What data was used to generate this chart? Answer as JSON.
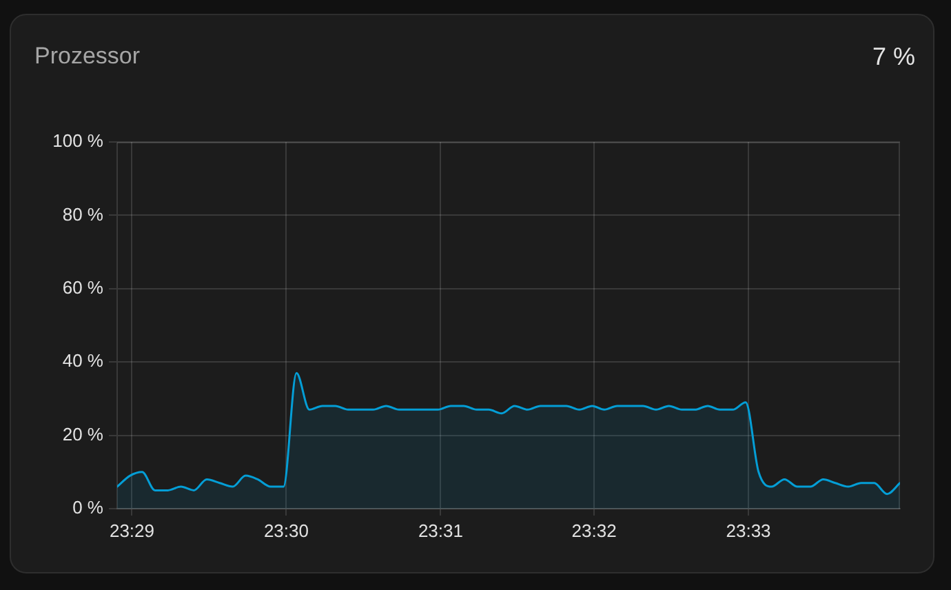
{
  "chart_data": {
    "type": "area",
    "title": "Prozessor",
    "annotations": [
      "7 %"
    ],
    "x": [
      23.4817,
      23.4831,
      23.4844,
      23.4858,
      23.4872,
      23.4886,
      23.49,
      23.4914,
      23.4928,
      23.4942,
      23.4956,
      23.4969,
      23.4983,
      23.4997,
      23.5011,
      23.5025,
      23.5039,
      23.5053,
      23.5067,
      23.5081,
      23.5094,
      23.5108,
      23.5122,
      23.5136,
      23.515,
      23.5164,
      23.5178,
      23.5192,
      23.5206,
      23.5219,
      23.5233,
      23.5247,
      23.5261,
      23.5275,
      23.5289,
      23.5303,
      23.5317,
      23.5331,
      23.5344,
      23.5358,
      23.5372,
      23.5386,
      23.54,
      23.5414,
      23.5428,
      23.5442,
      23.5456,
      23.5469,
      23.5483,
      23.5497,
      23.5511,
      23.5525,
      23.5539,
      23.5553,
      23.5567,
      23.5581,
      23.5594,
      23.5608,
      23.5622,
      23.5636,
      23.565,
      23.5664
    ],
    "series": [
      {
        "color": "#049ed6",
        "values": [
          6,
          9,
          10,
          5,
          5,
          6,
          5,
          8,
          7,
          6,
          9,
          8,
          6,
          6,
          37,
          27,
          28,
          28,
          27,
          27,
          27,
          28,
          27,
          27,
          27,
          27,
          28,
          28,
          27,
          27,
          26,
          28,
          27,
          28,
          28,
          28,
          27,
          28,
          27,
          28,
          28,
          28,
          27,
          28,
          27,
          27,
          28,
          27,
          27,
          29,
          10,
          6,
          8,
          6,
          6,
          8,
          7,
          6,
          7,
          7,
          4,
          7
        ]
      }
    ],
    "xlim": [
      23.4817,
      23.5664
    ],
    "xticks": [
      {
        "value": 23.4833,
        "label": "23:29"
      },
      {
        "value": 23.5,
        "label": "23:30"
      },
      {
        "value": 23.5167,
        "label": "23:31"
      },
      {
        "value": 23.5333,
        "label": "23:32"
      },
      {
        "value": 23.55,
        "label": "23:33"
      }
    ],
    "ylim": [
      0,
      100
    ],
    "yticks": [
      {
        "value": 0,
        "label": "0 %"
      },
      {
        "value": 20,
        "label": "20 %"
      },
      {
        "value": 40,
        "label": "40 %"
      },
      {
        "value": 60,
        "label": "60 %"
      },
      {
        "value": 80,
        "label": "80 %"
      },
      {
        "value": 100,
        "label": "100 %"
      }
    ],
    "grid": true,
    "marker": "none",
    "line_style": "solid"
  }
}
